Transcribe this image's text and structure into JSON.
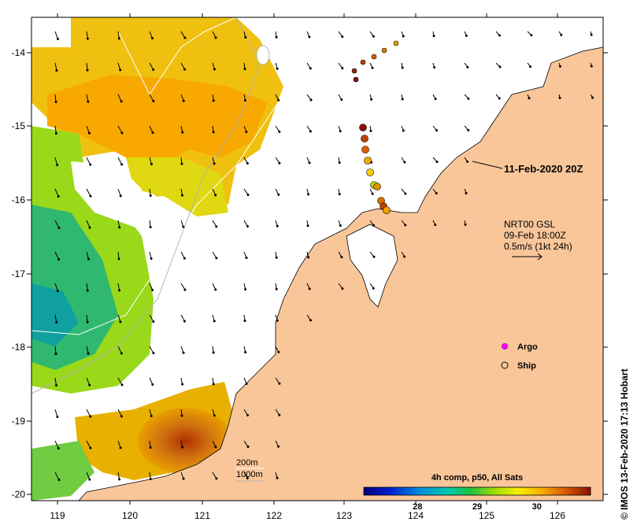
{
  "map": {
    "longitude_ticks": [
      "119",
      "120",
      "121",
      "122",
      "123",
      "124",
      "125",
      "126"
    ],
    "latitude_ticks": [
      "-14",
      "-15",
      "-16",
      "-17",
      "-18",
      "-19",
      "-20"
    ],
    "land_color": "#f9c69a",
    "sea_cloud_color": "#ffffff",
    "bathymetry_color": "#b4b4b4"
  },
  "annotations": {
    "ship_time": "11-Feb-2020 20Z",
    "wind_source": "NRT00 GSL",
    "wind_time": "09-Feb 18:00Z",
    "wind_scale": "0.5m/s (1kt 24h)"
  },
  "legend": {
    "argo": "Argo",
    "ship": "Ship",
    "argo_color": "#ff00ff"
  },
  "contours": {
    "shallow": "200m",
    "deep": "1000m"
  },
  "colorbar": {
    "title": "4h comp, p50, All Sats",
    "ticks": [
      "28",
      "29",
      "30"
    ],
    "range": [
      27.1,
      30.9
    ]
  },
  "credit": "© IMOS 13-Feb-2020 17:13 Hobart"
}
